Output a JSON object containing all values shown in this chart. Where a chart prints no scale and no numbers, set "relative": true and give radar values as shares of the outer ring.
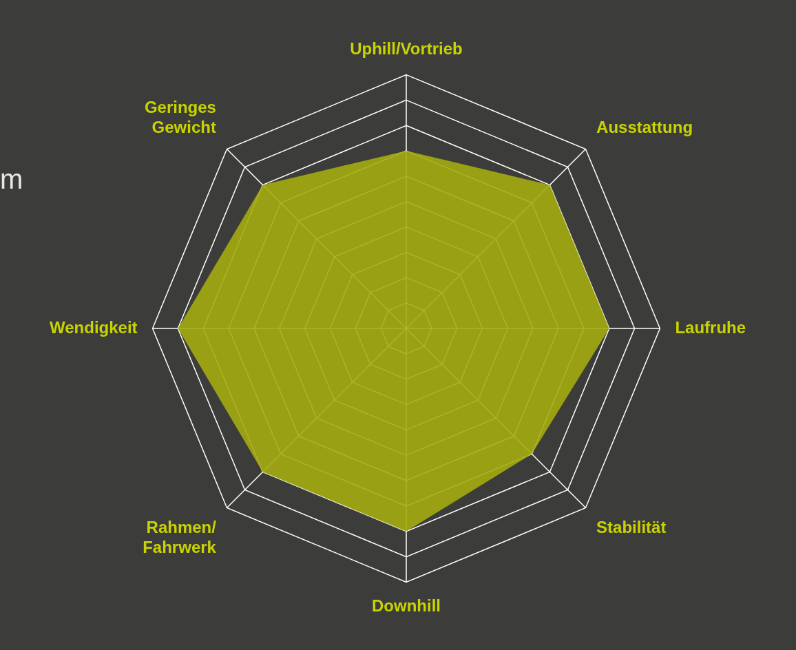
{
  "chart_data": {
    "type": "radar",
    "relative": true,
    "categories": [
      "Uphill/Vortrieb",
      "Ausstattung",
      "Laufruhe",
      "Stabilität",
      "Downhill",
      "Rahmen/ Fahrwerk",
      "Wendigkeit",
      "Geringes Gewicht"
    ],
    "series": [
      {
        "color": "#a3ab0f",
        "values": [
          0.7,
          0.8,
          0.8,
          0.7,
          0.8,
          0.8,
          0.9,
          0.8
        ]
      }
    ],
    "annotations": [
      "m"
    ],
    "grid": true,
    "legend": false
  }
}
